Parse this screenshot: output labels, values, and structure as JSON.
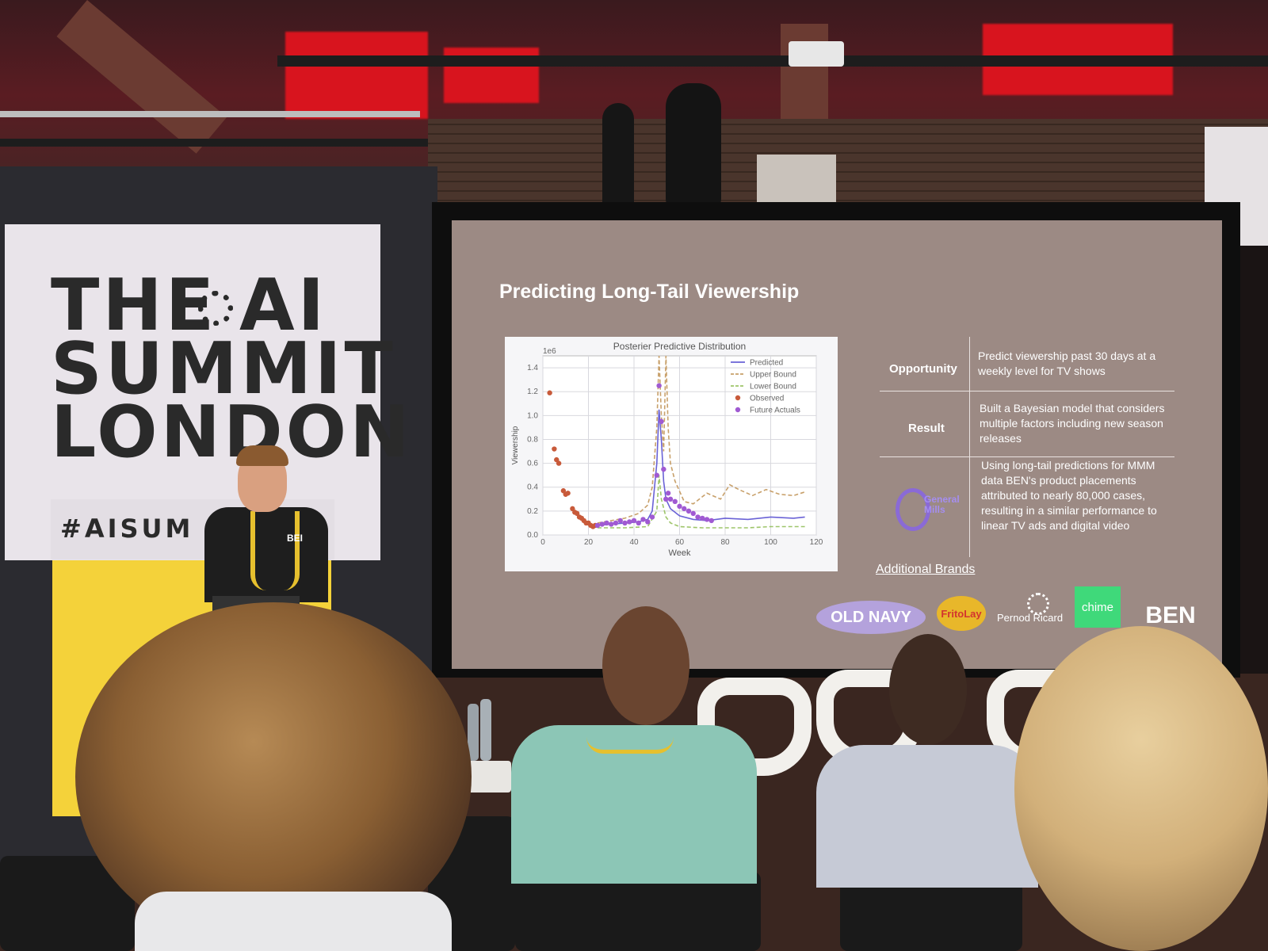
{
  "banner": {
    "line1": "THE",
    "line1b": "AI",
    "line2": "SUMMIT",
    "line3": "LONDON",
    "hashtag": "#AISUM"
  },
  "slide": {
    "title": "Predicting Long-Tail Viewership",
    "table": [
      {
        "label": "Opportunity",
        "text": "Predict viewership past 30 days at a weekly level for TV shows"
      },
      {
        "label": "Result",
        "text": "Built a Bayesian model that considers multiple factors including new season releases"
      },
      {
        "label": "General Mills",
        "text": "Using long-tail predictions for MMM data BEN's product placements attributed to nearly 80,000 cases, resulting in a similar performance to linear TV ads and digital video"
      }
    ],
    "additional_brands_label": "Additional Brands",
    "brands": [
      "OLD NAVY",
      "FritoLay",
      "Pernod Ricard",
      "chime",
      "BEN"
    ]
  },
  "presenter_badge": "BEI",
  "chart_data": {
    "type": "line",
    "title": "Posterier Predictive Distribution",
    "xlabel": "Week",
    "ylabel": "Viewership",
    "y_multiplier_label": "1e6",
    "xlim": [
      0,
      120
    ],
    "ylim": [
      0,
      1.5
    ],
    "xticks": [
      "0",
      "20",
      "40",
      "60",
      "80",
      "100",
      "120"
    ],
    "yticks": [
      "0.0",
      "0.2",
      "0.4",
      "0.6",
      "0.8",
      "1.0",
      "1.2",
      "1.4"
    ],
    "grid": true,
    "legend_position": "top-right",
    "legend": [
      "Predicted",
      "Upper Bound",
      "Lower Bound",
      "Observed",
      "Future Actuals"
    ],
    "colors": {
      "predicted": "#6a62d6",
      "upper": "#c8a06a",
      "lower": "#9ec56a",
      "observed": "#c85a3a",
      "future": "#a05ad2"
    },
    "series": [
      {
        "name": "Predicted",
        "style": "line",
        "x": [
          24,
          30,
          36,
          42,
          46,
          48,
          50,
          51,
          52,
          53,
          54,
          56,
          60,
          66,
          72,
          80,
          90,
          100,
          110,
          115
        ],
        "y": [
          0.08,
          0.09,
          0.1,
          0.11,
          0.13,
          0.2,
          0.6,
          1.05,
          0.8,
          0.45,
          0.3,
          0.22,
          0.16,
          0.13,
          0.12,
          0.14,
          0.13,
          0.15,
          0.14,
          0.15
        ]
      },
      {
        "name": "Upper Bound",
        "style": "dashed",
        "x": [
          24,
          30,
          36,
          42,
          46,
          48,
          50,
          51,
          52,
          53,
          54,
          55,
          56,
          58,
          62,
          66,
          72,
          78,
          82,
          86,
          92,
          98,
          104,
          110,
          115
        ],
        "y": [
          0.1,
          0.12,
          0.14,
          0.18,
          0.25,
          0.4,
          0.9,
          1.5,
          1.0,
          0.7,
          1.5,
          0.9,
          0.6,
          0.45,
          0.28,
          0.26,
          0.35,
          0.3,
          0.42,
          0.38,
          0.33,
          0.38,
          0.34,
          0.33,
          0.36
        ]
      },
      {
        "name": "Lower Bound",
        "style": "dashed",
        "x": [
          24,
          36,
          46,
          50,
          51,
          52,
          54,
          56,
          60,
          70,
          80,
          90,
          100,
          110,
          115
        ],
        "y": [
          0.06,
          0.06,
          0.07,
          0.2,
          0.5,
          0.3,
          0.15,
          0.1,
          0.07,
          0.06,
          0.06,
          0.06,
          0.07,
          0.07,
          0.07
        ]
      },
      {
        "name": "Observed",
        "style": "points",
        "x": [
          3,
          5,
          6,
          7,
          9,
          10,
          11,
          13,
          14,
          15,
          16,
          17,
          18,
          19,
          20,
          21,
          22,
          23
        ],
        "y": [
          1.19,
          0.72,
          0.63,
          0.6,
          0.37,
          0.34,
          0.35,
          0.22,
          0.19,
          0.18,
          0.15,
          0.14,
          0.12,
          0.1,
          0.1,
          0.08,
          0.07,
          0.08
        ]
      },
      {
        "name": "Future Actuals",
        "style": "points",
        "x": [
          24,
          26,
          28,
          30,
          32,
          34,
          36,
          38,
          40,
          42,
          44,
          46,
          48,
          50,
          51,
          52,
          53,
          54,
          55,
          56,
          58,
          60,
          62,
          64,
          66,
          68,
          70,
          72,
          74
        ],
        "y": [
          0.08,
          0.09,
          0.1,
          0.09,
          0.1,
          0.12,
          0.1,
          0.11,
          0.12,
          0.1,
          0.13,
          0.11,
          0.15,
          0.5,
          1.25,
          0.95,
          0.55,
          0.3,
          0.35,
          0.3,
          0.28,
          0.24,
          0.22,
          0.2,
          0.18,
          0.15,
          0.14,
          0.13,
          0.12
        ]
      }
    ]
  }
}
